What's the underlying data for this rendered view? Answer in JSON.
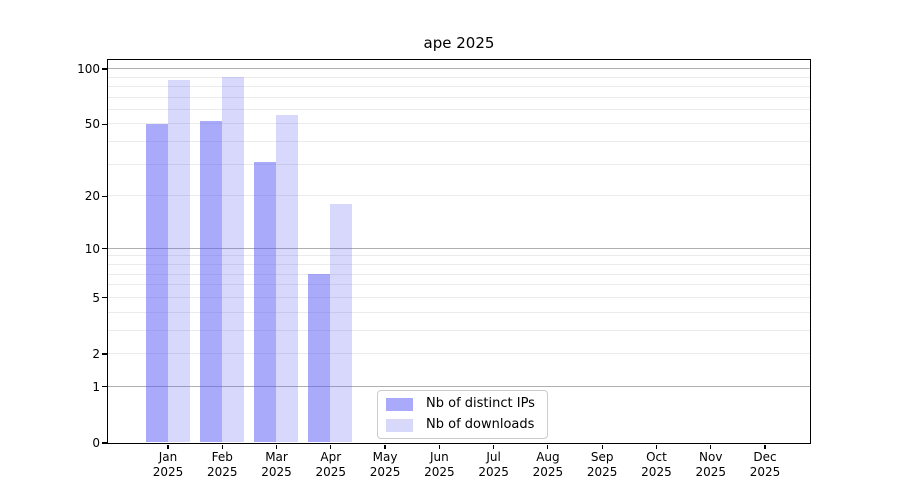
{
  "chart_data": {
    "type": "bar",
    "title": "ape 2025",
    "categories": [
      "Jan",
      "Feb",
      "Mar",
      "Apr",
      "May",
      "Jun",
      "Jul",
      "Aug",
      "Sep",
      "Oct",
      "Nov",
      "Dec"
    ],
    "category_sublabel": "2025",
    "series": [
      {
        "name": "Nb of distinct IPs",
        "color": "#5555f5",
        "alpha": 0.5,
        "legend_color": "#aaaafa",
        "values": [
          50,
          52,
          31,
          7,
          0,
          0,
          0,
          0,
          0,
          0,
          0,
          0
        ]
      },
      {
        "name": "Nb of downloads",
        "color": "#5555f5",
        "alpha": 0.23,
        "legend_color": "#d8d8fa",
        "values": [
          87,
          90,
          56,
          18,
          0,
          0,
          0,
          0,
          0,
          0,
          0,
          0
        ]
      }
    ],
    "xlabel": "",
    "ylabel": "",
    "yscale": "log1p",
    "yticks": [
      0,
      1,
      2,
      5,
      10,
      20,
      50,
      100
    ],
    "ylim": [
      0,
      112
    ],
    "grid": {
      "on": true,
      "major_values": [
        1,
        10,
        100
      ],
      "minor_values": [
        2,
        3,
        4,
        5,
        6,
        7,
        8,
        9,
        20,
        30,
        40,
        50,
        60,
        70,
        80,
        90
      ],
      "major_color": "#b0b0b0",
      "minor_color": "#ebebeb"
    },
    "legend": {
      "position": "lower-center",
      "border_color": "#cccccc",
      "entries": [
        "Nb of distinct IPs",
        "Nb of downloads"
      ]
    }
  }
}
